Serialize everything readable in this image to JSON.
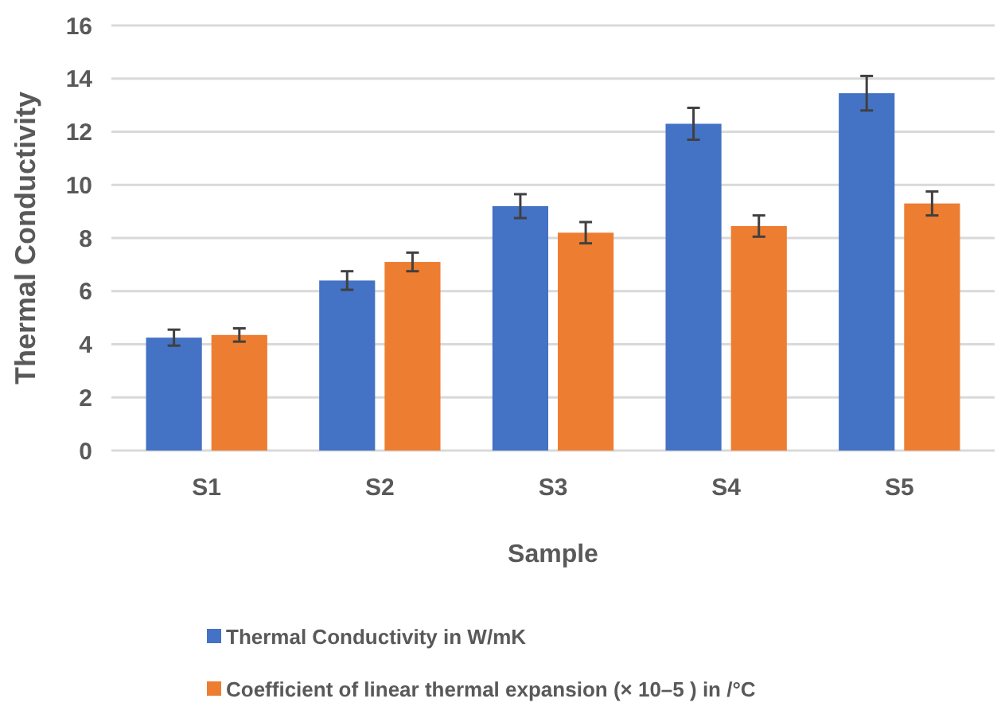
{
  "chart_data": {
    "type": "bar",
    "xlabel": "Sample",
    "ylabel": "Thermal Conductivity",
    "categories": [
      "S1",
      "S2",
      "S3",
      "S4",
      "S5"
    ],
    "series": [
      {
        "name": "Thermal Conductivity in W/mK",
        "color": "#4472c4",
        "values": [
          4.25,
          6.4,
          9.2,
          12.3,
          13.45
        ],
        "errors": [
          0.3,
          0.35,
          0.45,
          0.6,
          0.65
        ]
      },
      {
        "name": "Coefficient of linear thermal expansion (× 10–5 ) in  /°C",
        "color": "#ed7d31",
        "values": [
          4.35,
          7.1,
          8.2,
          8.45,
          9.3
        ],
        "errors": [
          0.25,
          0.35,
          0.4,
          0.4,
          0.45
        ]
      }
    ],
    "ylim": [
      0,
      16
    ],
    "yticks": [
      0,
      2,
      4,
      6,
      8,
      10,
      12,
      14,
      16
    ],
    "grid": "y",
    "legend": "bottom"
  }
}
